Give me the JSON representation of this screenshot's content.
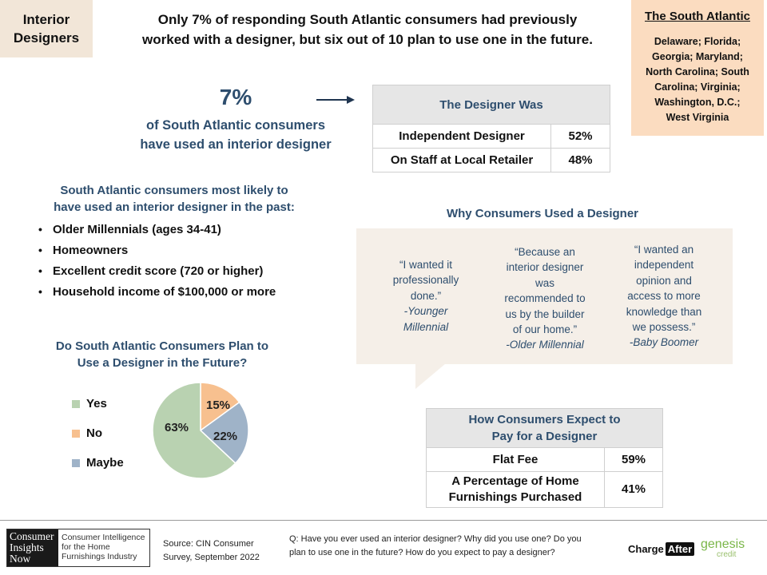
{
  "tag": {
    "line1": "Interior",
    "line2": "Designers"
  },
  "headline": {
    "line1": "Only 7% of responding South Atlantic consumers had previously",
    "line2": "worked with a designer, but six out of 10 plan to use one in the future."
  },
  "region": {
    "title": "The South Atlantic",
    "states": [
      "Delaware; Florida;",
      "Georgia; Maryland;",
      "North Carolina; South",
      "Carolina; Virginia;",
      "Washington, D.C.;",
      "West Virginia"
    ]
  },
  "stat": {
    "value": "7%",
    "line1": "of South Atlantic consumers",
    "line2": "have used an interior designer"
  },
  "designer_was": {
    "title": "The Designer Was",
    "rows": [
      {
        "label": "Independent Designer",
        "value": "52%"
      },
      {
        "label": "On Staff at Local Retailer",
        "value": "48%"
      }
    ]
  },
  "likely": {
    "title_line1": "South Atlantic consumers most likely to",
    "title_line2": "have used an interior designer in the past:",
    "items": [
      "Older Millennials (ages 34-41)",
      "Homeowners",
      "Excellent credit score (720 or higher)",
      "Household income of $100,000 or more"
    ],
    "bullet": "•"
  },
  "why": {
    "title": "Why Consumers Used a Designer",
    "quotes": [
      {
        "lines": [
          "“I wanted it",
          "professionally",
          "done.”"
        ],
        "who": "-Younger",
        "who2": "Millennial"
      },
      {
        "lines": [
          "“Because an",
          "interior designer",
          "was",
          "recommended to",
          "us by the builder",
          "of our home.”"
        ],
        "who": "-Older Millennial",
        "who2": ""
      },
      {
        "lines": [
          "“I wanted an",
          "independent",
          "opinion and",
          "access to more",
          "knowledge than",
          "we possess.”"
        ],
        "who": "-Baby Boomer",
        "who2": ""
      }
    ]
  },
  "future": {
    "title_line1": "Do South Atlantic Consumers Plan to",
    "title_line2": "Use a Designer in the Future?"
  },
  "chart_data": {
    "type": "pie",
    "title": "Do South Atlantic Consumers Plan to Use a Designer in the Future?",
    "categories": [
      "Yes",
      "No",
      "Maybe"
    ],
    "values": [
      63,
      15,
      22
    ],
    "labels": [
      "63%",
      "15%",
      "22%"
    ],
    "colors": [
      "#b9d2b1",
      "#f7c08f",
      "#9fb3c8"
    ],
    "legend_position": "left"
  },
  "pay": {
    "title_line1": "How Consumers Expect to",
    "title_line2": "Pay for a Designer",
    "rows": [
      {
        "label": "Flat Fee",
        "value": "59%"
      },
      {
        "label1": "A Percentage of Home",
        "label2": "Furnishings Purchased",
        "value": "41%"
      }
    ]
  },
  "footer": {
    "logo_left": [
      "Consumer",
      "Insights",
      "Now"
    ],
    "logo_right": [
      "Consumer Intelligence",
      "for the Home",
      "Furnishings Industry"
    ],
    "source_line1": "Source: CIN Consumer",
    "source_line2": "Survey, September  2022",
    "question_line1": "Q: Have you ever used an interior designer? Why did you use one? Do you",
    "question_line2": "plan to use one in the future? How do you expect to pay a designer?",
    "brand1_a": "Charge",
    "brand1_b": "After",
    "brand2_a": "genesis",
    "brand2_b": "credit"
  },
  "colors": {
    "accent_blue": "#2e4e6e",
    "tag_bg": "#f2e6d8",
    "region_bg": "#fbdcc0",
    "quote_bg": "#f5efe8",
    "brand_green": "#7ab648"
  }
}
